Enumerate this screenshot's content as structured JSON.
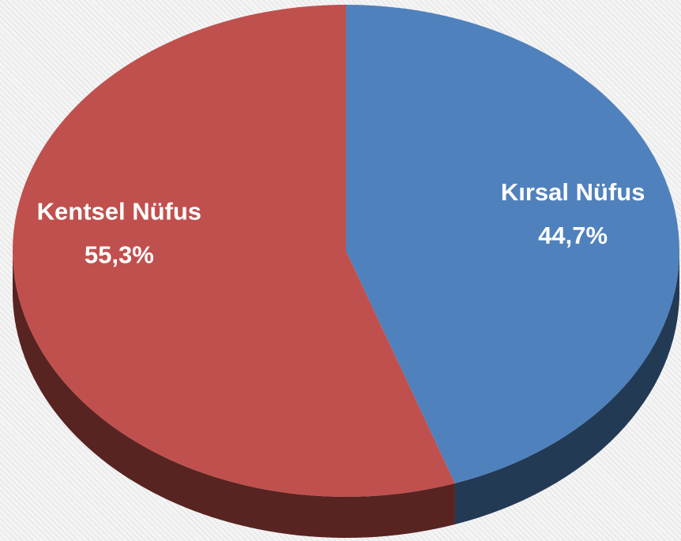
{
  "chart_data": {
    "type": "pie",
    "categories": [
      "Kentsel Nüfus",
      "Kırsal Nüfus"
    ],
    "values": [
      55.3,
      44.7
    ],
    "value_labels": [
      "55,3%",
      "44,7%"
    ],
    "colors": [
      "#c0504d",
      "#4f81bd"
    ]
  }
}
